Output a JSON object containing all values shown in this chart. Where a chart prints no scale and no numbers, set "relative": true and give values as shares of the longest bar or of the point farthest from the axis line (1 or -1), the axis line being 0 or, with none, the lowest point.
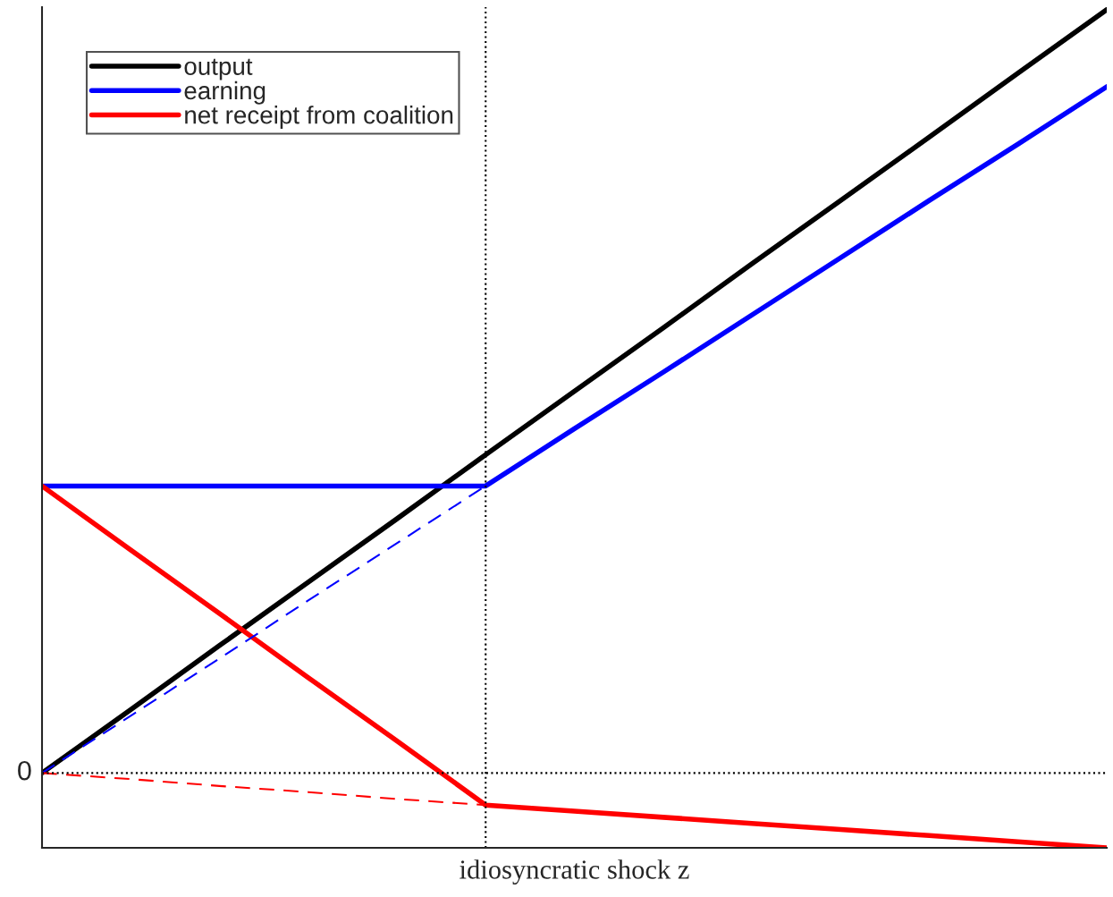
{
  "chart_data": {
    "type": "line",
    "relative": true,
    "xlabel": "idiosyncratic shock z",
    "categories": [
      null,
      null,
      null,
      null,
      null,
      null,
      null,
      null,
      null,
      null,
      null,
      null,
      null
    ],
    "legend": "top left",
    "series": [
      {
        "name": "output",
        "color": "#000000",
        "values": [
          0,
          0.083,
          0.167,
          0.25,
          0.333,
          0.417,
          0.5,
          0.583,
          0.667,
          0.75,
          0.833,
          0.917,
          1
        ],
        "line_style": "solid"
      },
      {
        "name": "earning",
        "color": "#0000ff",
        "values": [
          0.376,
          0.376,
          0.376,
          0.376,
          0.376,
          0.376,
          0.451,
          0.525,
          0.6,
          0.675,
          0.75,
          0.824,
          0.899
        ],
        "line_style": "solid"
      },
      {
        "name": "net receipt from coalition",
        "color": "#ff0000",
        "values": [
          0.376,
          0.292,
          0.209,
          0.125,
          0.042,
          -0.042,
          -0.05,
          -0.058,
          -0.066,
          -0.074,
          -0.082,
          -0.09,
          -0.098
        ],
        "line_style": "solid"
      },
      {
        "color": "#0000ff",
        "values": [
          0,
          0.075,
          0.15,
          0.226,
          0.301,
          0.376,
          null,
          null,
          null,
          null,
          null,
          null,
          null
        ],
        "line_style": "dashed"
      },
      {
        "color": "#ff0000",
        "values": [
          0,
          -0.008,
          -0.017,
          -0.025,
          -0.034,
          -0.042,
          null,
          null,
          null,
          null,
          null,
          null,
          null
        ],
        "line_style": "dashed"
      }
    ],
    "ref_lines": [
      {
        "axis": "y",
        "value": 0,
        "label": "0",
        "color": "#000000",
        "line_style": "dotted"
      }
    ]
  }
}
